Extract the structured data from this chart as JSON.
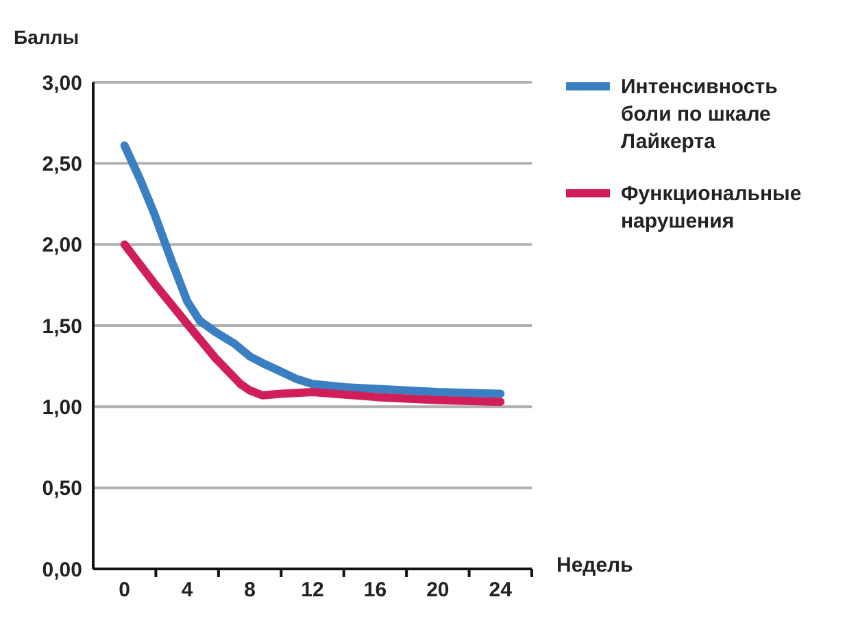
{
  "chart_data": {
    "type": "line",
    "ylabel": "Баллы",
    "xlabel": "Недель",
    "xlim": [
      -2,
      26
    ],
    "xticks": [
      0,
      4,
      8,
      12,
      16,
      20,
      24
    ],
    "ylim": [
      0,
      3
    ],
    "yticks": [
      {
        "value": 0,
        "label": "0,00"
      },
      {
        "value": 0.5,
        "label": "0,50"
      },
      {
        "value": 1,
        "label": "1,00"
      },
      {
        "value": 1.5,
        "label": "1,50"
      },
      {
        "value": 2,
        "label": "2,00"
      },
      {
        "value": 2.5,
        "label": "2,50"
      },
      {
        "value": 3,
        "label": "3,00"
      }
    ],
    "grid": "y",
    "legend": "top right",
    "marker": "none",
    "line_style": "solid",
    "series": [
      {
        "name": "Интенсивность боли по шкале Лайкерта",
        "color": "#3a7fc1",
        "x": [
          0,
          1,
          1.9,
          3,
          4,
          4.8,
          5.8,
          7,
          8,
          9,
          9.9,
          11,
          12,
          14.1,
          16,
          20,
          24
        ],
        "values": [
          2.61,
          2.4,
          2.19,
          1.9,
          1.65,
          1.53,
          1.46,
          1.39,
          1.31,
          1.26,
          1.22,
          1.17,
          1.14,
          1.12,
          1.11,
          1.09,
          1.08
        ]
      },
      {
        "name": "Функциональные нарушения",
        "color": "#d01e5a",
        "x": [
          0,
          1.9,
          4,
          5.8,
          6.7,
          7.4,
          8,
          8.8,
          10,
          12,
          16,
          20,
          24
        ],
        "values": [
          2.0,
          1.76,
          1.51,
          1.3,
          1.21,
          1.14,
          1.1,
          1.07,
          1.08,
          1.09,
          1.06,
          1.04,
          1.03
        ]
      }
    ]
  }
}
